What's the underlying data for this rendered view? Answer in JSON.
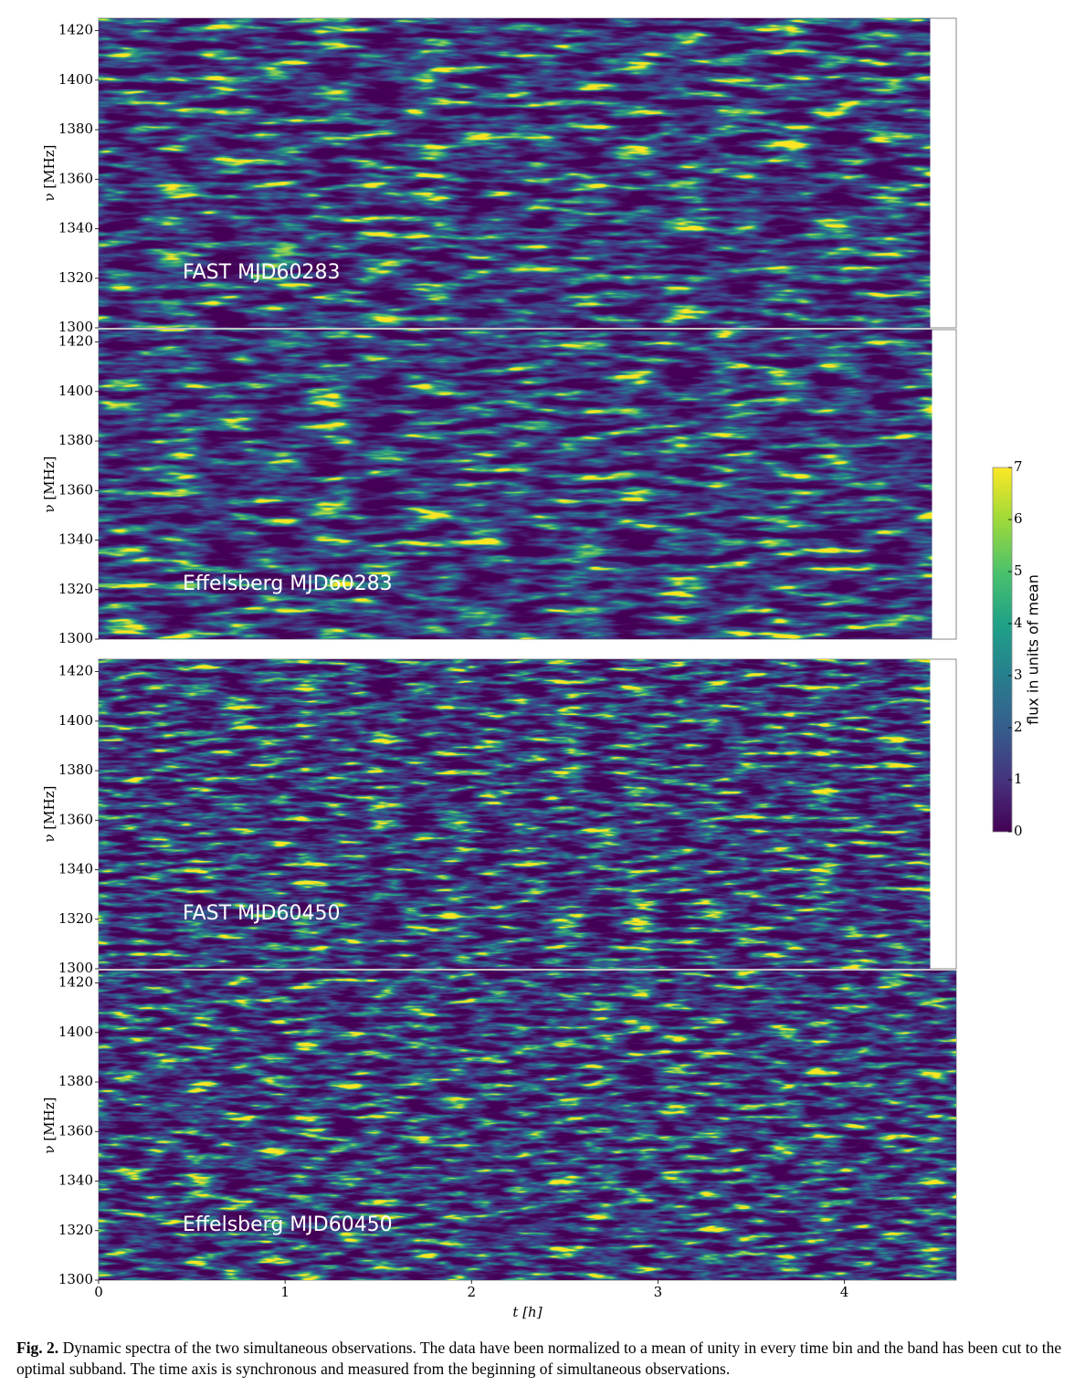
{
  "figure": {
    "panels": [
      {
        "label": "FAST MJD60283",
        "y_label": "ν [MHz]",
        "ylim": [
          1300,
          1425
        ],
        "yticks": [
          1300,
          1320,
          1340,
          1360,
          1380,
          1400,
          1420
        ],
        "t_extent": [
          0,
          4.46
        ]
      },
      {
        "label": "Effelsberg MJD60283",
        "y_label": "ν [MHz]",
        "ylim": [
          1300,
          1425
        ],
        "yticks": [
          1300,
          1320,
          1340,
          1360,
          1380,
          1400,
          1420
        ],
        "t_extent": [
          0,
          4.47
        ]
      },
      {
        "label": "FAST MJD60450",
        "y_label": "ν [MHz]",
        "ylim": [
          1300,
          1425
        ],
        "yticks": [
          1300,
          1320,
          1340,
          1360,
          1380,
          1400,
          1420
        ],
        "t_extent": [
          0,
          4.46
        ]
      },
      {
        "label": "Effelsberg MJD60450",
        "y_label": "ν [MHz]",
        "ylim": [
          1300,
          1425
        ],
        "yticks": [
          1300,
          1320,
          1340,
          1360,
          1380,
          1400,
          1420
        ],
        "t_extent": [
          0,
          4.6
        ]
      }
    ],
    "x_axis": {
      "label": "t [h]",
      "xlim": [
        0,
        4.6
      ],
      "xticks": [
        0,
        1,
        2,
        3,
        4
      ]
    },
    "colorbar": {
      "label": "flux in units of mean",
      "lim": [
        0,
        7
      ],
      "ticks": [
        0,
        1,
        2,
        3,
        4,
        5,
        6,
        7
      ]
    }
  },
  "caption": {
    "label": "Fig. 2.",
    "text": "Dynamic spectra of the two simultaneous observations. The data have been normalized to a mean of unity in every time bin and the band has been cut to the optimal subband. The time axis is synchronous and measured from the beginning of simultaneous observations."
  }
}
